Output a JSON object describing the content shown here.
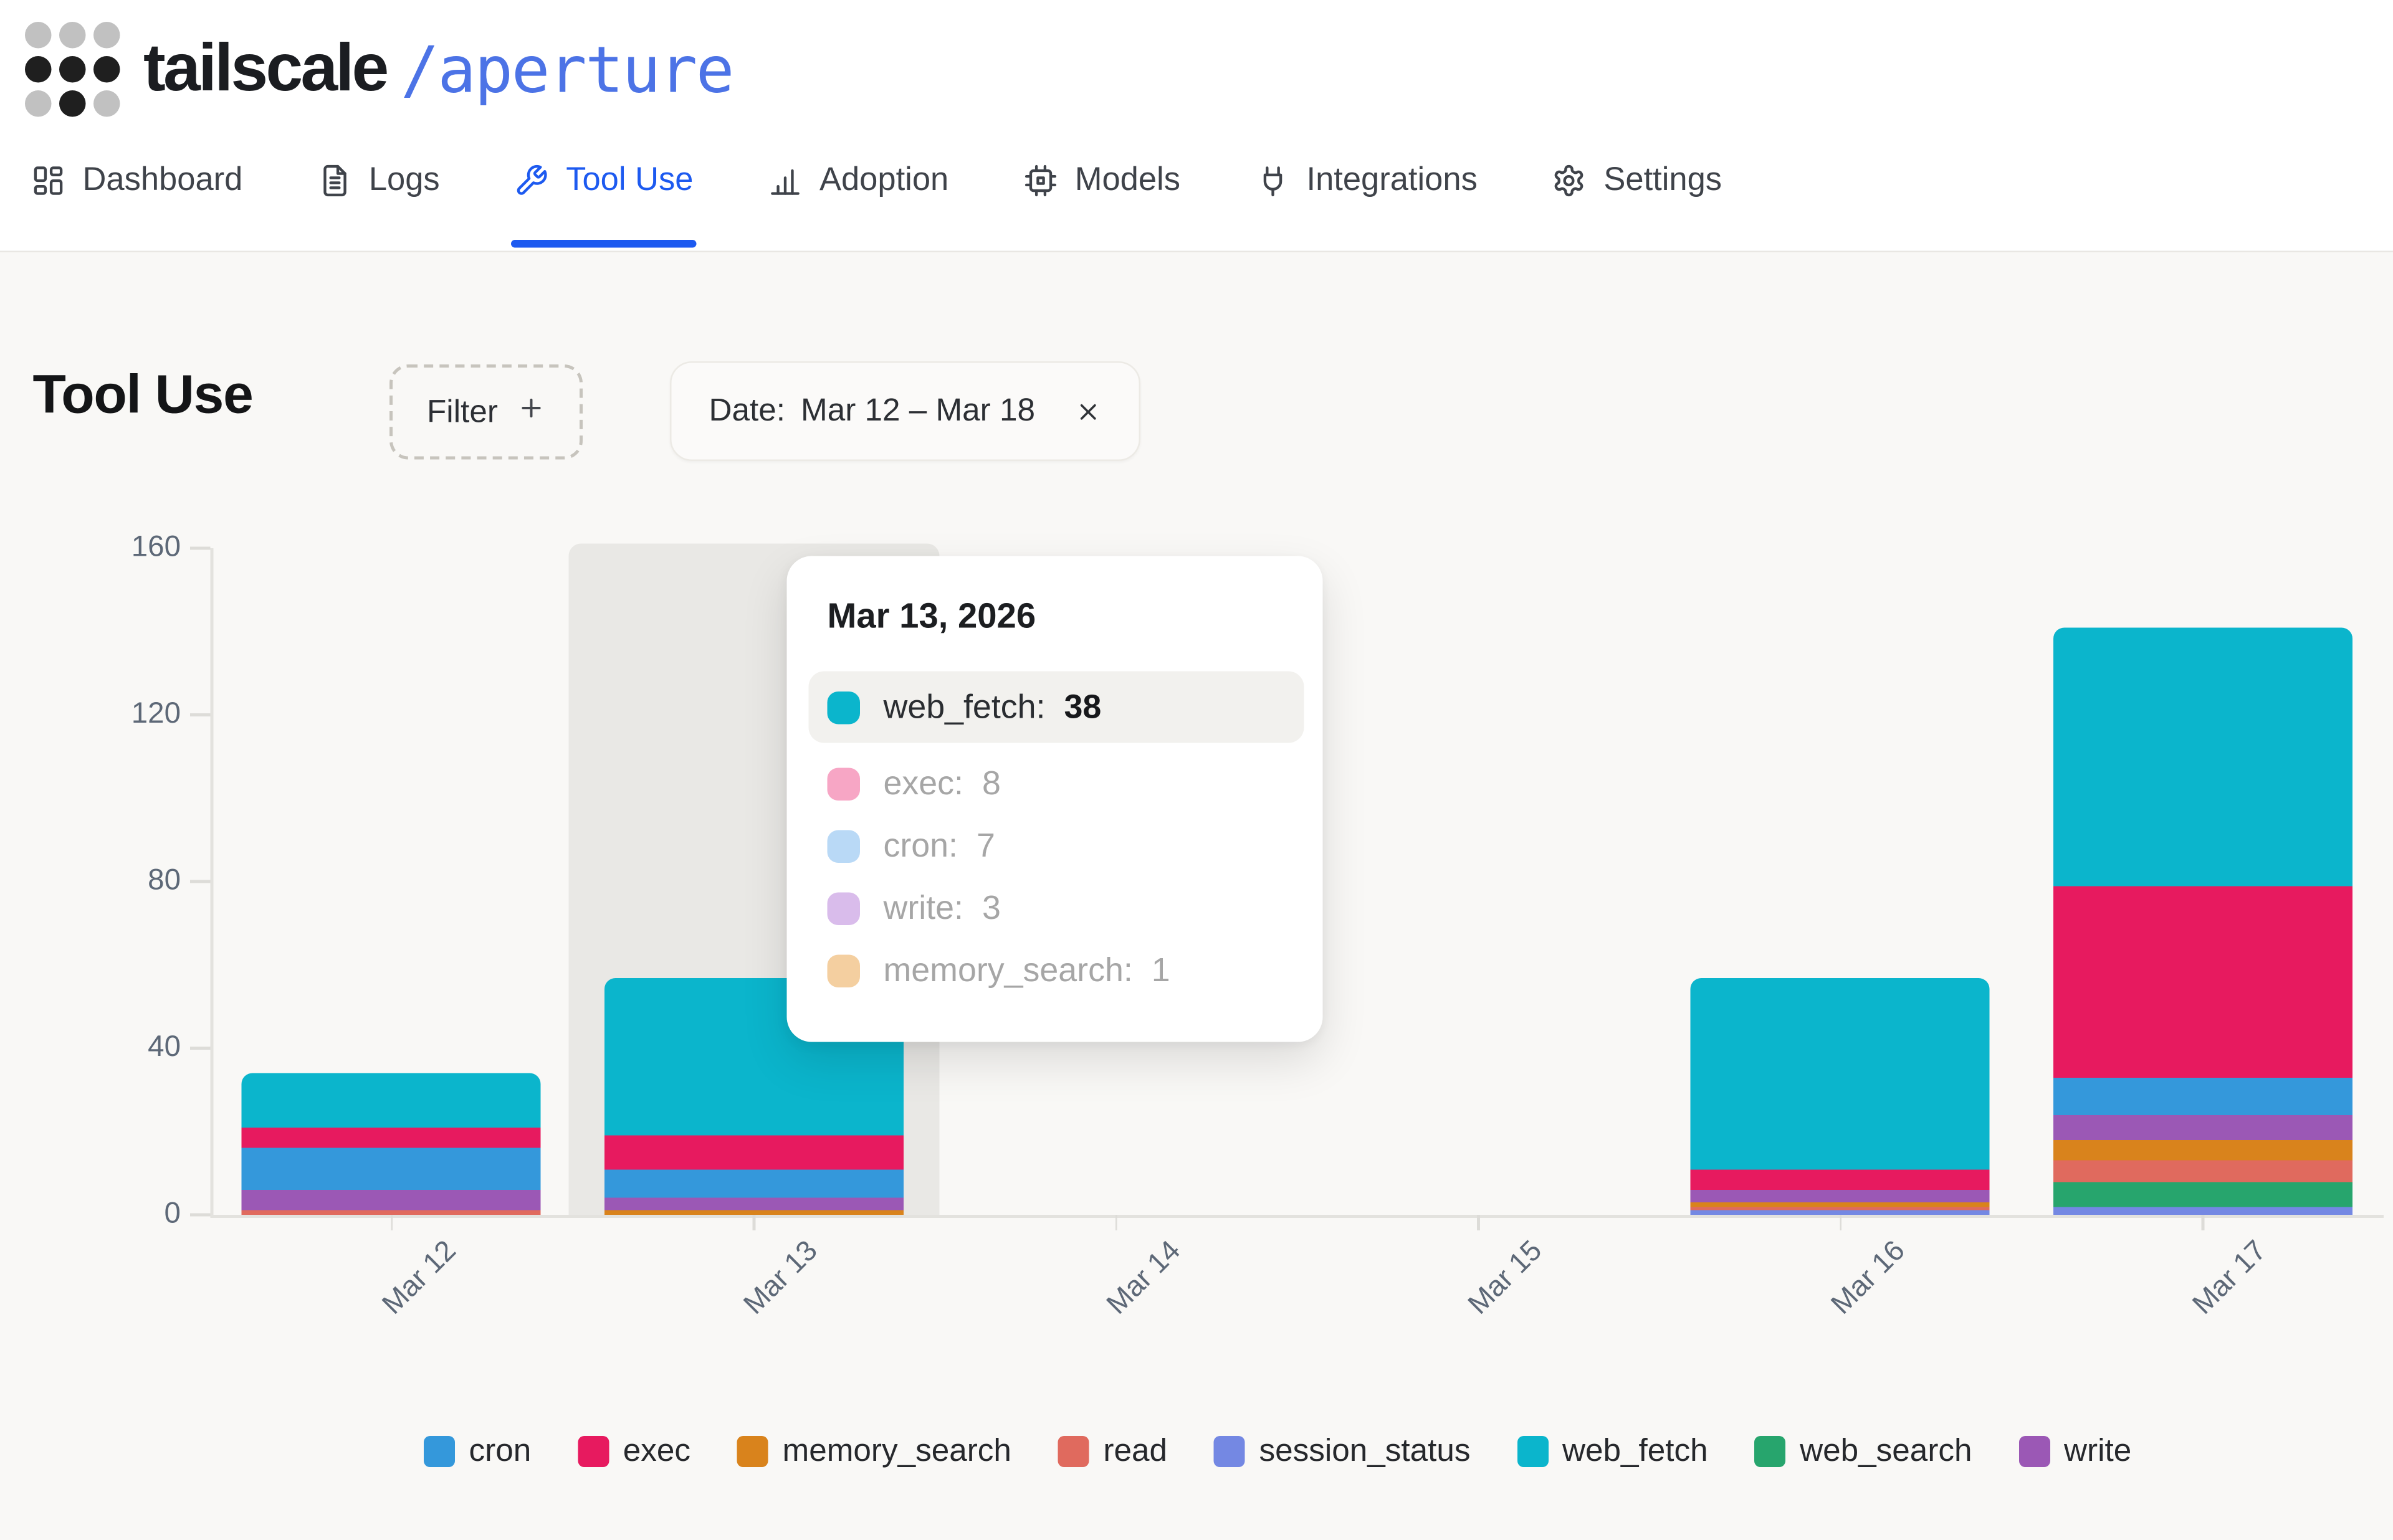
{
  "header": {
    "brand": "tailscale",
    "workspace": "/aperture"
  },
  "nav": {
    "items": [
      {
        "id": "dashboard",
        "label": "Dashboard",
        "active": false
      },
      {
        "id": "logs",
        "label": "Logs",
        "active": false
      },
      {
        "id": "tool-use",
        "label": "Tool Use",
        "active": true
      },
      {
        "id": "adoption",
        "label": "Adoption",
        "active": false
      },
      {
        "id": "models",
        "label": "Models",
        "active": false
      },
      {
        "id": "integrations",
        "label": "Integrations",
        "active": false
      },
      {
        "id": "settings",
        "label": "Settings",
        "active": false
      }
    ]
  },
  "page": {
    "title": "Tool Use",
    "filter_label": "Filter",
    "date_filter": {
      "label": "Date:",
      "value": "Mar 12 – Mar 18"
    }
  },
  "chart_data": {
    "type": "bar",
    "stacked": true,
    "title": "",
    "xlabel": "",
    "ylabel": "",
    "x": [
      "Mar 12",
      "Mar 13",
      "Mar 14",
      "Mar 15",
      "Mar 16",
      "Mar 17"
    ],
    "ylim": [
      0,
      160
    ],
    "yticks": [
      0,
      40,
      80,
      120,
      160
    ],
    "grid": false,
    "legend_position": "bottom",
    "legend": [
      "cron",
      "exec",
      "memory_search",
      "read",
      "session_status",
      "web_fetch",
      "web_search",
      "write"
    ],
    "colors": {
      "cron": "#3498db",
      "exec": "#e71a5f",
      "memory_search": "#d9831c",
      "read": "#e06a5e",
      "session_status": "#7488e3",
      "web_fetch": "#0bb5cc",
      "web_search": "#27a56d",
      "write": "#9b58b5"
    },
    "series": [
      {
        "name": "cron",
        "values": [
          10,
          7,
          0,
          0,
          0,
          9
        ]
      },
      {
        "name": "exec",
        "values": [
          5,
          8,
          0,
          0,
          5,
          46
        ]
      },
      {
        "name": "memory_search",
        "values": [
          0,
          1,
          0,
          0,
          1,
          5
        ]
      },
      {
        "name": "read",
        "values": [
          1,
          0,
          0,
          0,
          1,
          5
        ]
      },
      {
        "name": "session_status",
        "values": [
          0,
          0,
          0,
          0,
          1,
          2
        ]
      },
      {
        "name": "web_fetch",
        "values": [
          13,
          38,
          0,
          0,
          46,
          62
        ]
      },
      {
        "name": "web_search",
        "values": [
          0,
          0,
          0,
          0,
          0,
          6
        ]
      },
      {
        "name": "write",
        "values": [
          5,
          3,
          0,
          0,
          3,
          6
        ]
      }
    ],
    "bars": [
      {
        "date": "Mar 12",
        "total": 34,
        "segments": [
          [
            "read",
            1
          ],
          [
            "write",
            5
          ],
          [
            "cron",
            10
          ],
          [
            "exec",
            5
          ],
          [
            "web_fetch",
            13
          ]
        ]
      },
      {
        "date": "Mar 13",
        "total": 57,
        "segments": [
          [
            "memory_search",
            1
          ],
          [
            "write",
            3
          ],
          [
            "cron",
            7
          ],
          [
            "exec",
            8
          ],
          [
            "web_fetch",
            38
          ]
        ]
      },
      {
        "date": "Mar 14",
        "total": 0,
        "segments": []
      },
      {
        "date": "Mar 15",
        "total": 0,
        "segments": []
      },
      {
        "date": "Mar 16",
        "total": 57,
        "segments": [
          [
            "session_status",
            1
          ],
          [
            "read",
            1
          ],
          [
            "memory_search",
            1
          ],
          [
            "write",
            3
          ],
          [
            "exec",
            5
          ],
          [
            "web_fetch",
            46
          ]
        ]
      },
      {
        "date": "Mar 17",
        "total": 141,
        "segments": [
          [
            "session_status",
            2
          ],
          [
            "web_search",
            6
          ],
          [
            "read",
            5
          ],
          [
            "memory_search",
            5
          ],
          [
            "write",
            6
          ],
          [
            "cron",
            9
          ],
          [
            "exec",
            46
          ],
          [
            "web_fetch",
            62
          ]
        ]
      }
    ],
    "highlighted_index": 1
  },
  "tooltip": {
    "title": "Mar 13, 2026",
    "rows": [
      {
        "series": "web_fetch",
        "value": 38,
        "active": true,
        "swatch": "#0bb5cc"
      },
      {
        "series": "exec",
        "value": 8,
        "active": false,
        "swatch": "#f7a6c5"
      },
      {
        "series": "cron",
        "value": 7,
        "active": false,
        "swatch": "#b9d9f6"
      },
      {
        "series": "write",
        "value": 3,
        "active": false,
        "swatch": "#d9bceb"
      },
      {
        "series": "memory_search",
        "value": 1,
        "active": false,
        "swatch": "#f4cfa0"
      }
    ]
  }
}
